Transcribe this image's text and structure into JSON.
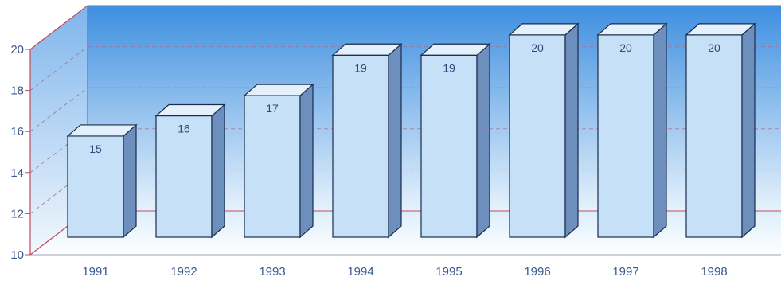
{
  "chart_data": {
    "type": "bar",
    "categories": [
      "1991",
      "1992",
      "1993",
      "1994",
      "1995",
      "1996",
      "1997",
      "1998"
    ],
    "values": [
      15,
      16,
      17,
      19,
      19,
      20,
      20,
      20
    ],
    "value_labels": [
      "15",
      "16",
      "17",
      "19",
      "19",
      "20",
      "20",
      "20"
    ],
    "ylim": [
      10,
      20
    ],
    "yticks": [
      "10",
      "12",
      "14",
      "16",
      "18",
      "20"
    ],
    "title": "",
    "xlabel": "",
    "ylabel": "",
    "grid": true,
    "style": "3d",
    "colors": {
      "bar_front": "#c6e0f7",
      "bar_side": "#6d8fbe",
      "bar_top": "#e4f1fc",
      "bar_outline": "#1a2c4a",
      "wall_top": "#3f8fe0",
      "wall_bottom": "#e6f2fc",
      "axis": "#c04b5e",
      "text": "#3a5a8c"
    }
  }
}
